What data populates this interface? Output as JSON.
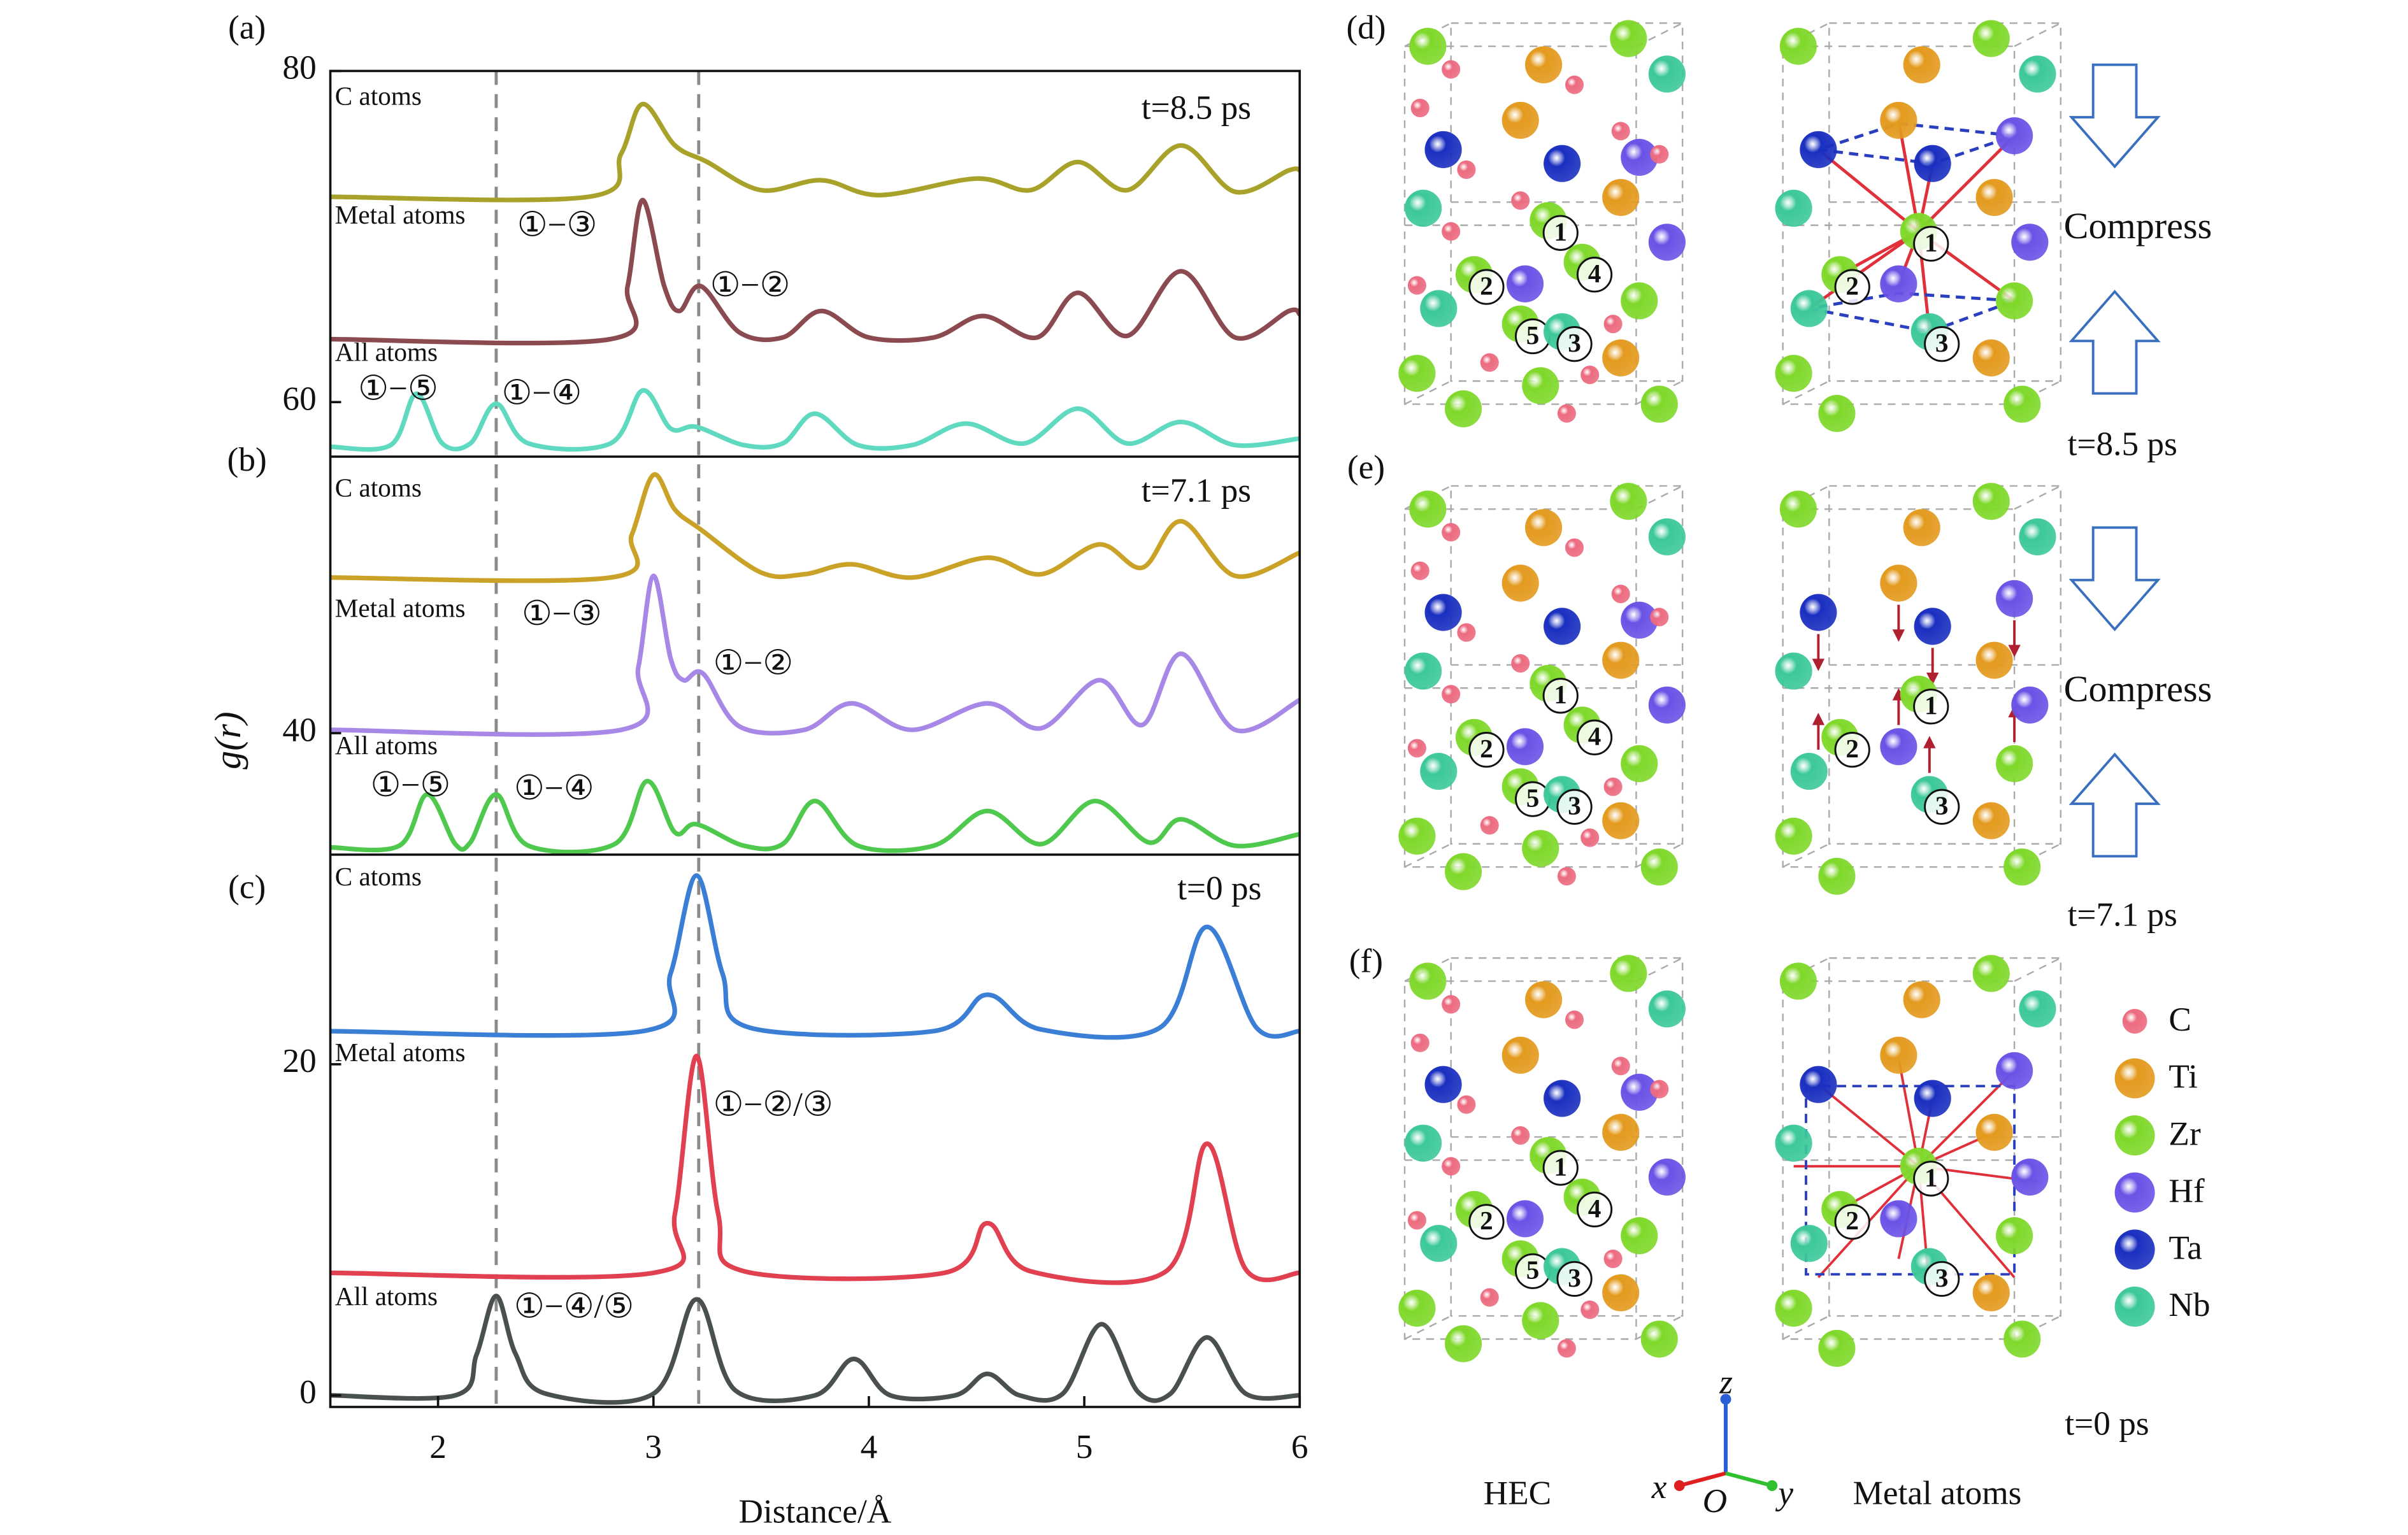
{
  "chart_data": {
    "type": "line",
    "xlabel": "Distance/Å",
    "ylabel": "g(r)",
    "xlim": [
      1.5,
      6
    ],
    "ylim": [
      -0.7,
      80
    ],
    "xticks": [
      2,
      3,
      4,
      5,
      6
    ],
    "yticks": [
      0,
      20,
      40,
      60,
      80
    ],
    "reference_lines": {
      "x": [
        2.27,
        3.21
      ],
      "color": "#8a8a8a"
    },
    "panels": [
      {
        "label": "(a)",
        "time": "t=8.5 ps",
        "annotations": [
          "①−③",
          "①−②",
          "①−⑤",
          "①−④"
        ],
        "series": [
          {
            "name": "C atoms",
            "color": "#a8a22a",
            "x": [
              1.5,
              2.7,
              2.85,
              2.95,
              3.1,
              3.25,
              3.5,
              3.78,
              4.05,
              4.5,
              4.75,
              4.97,
              5.2,
              5.45,
              5.7,
              5.95,
              6
            ],
            "values": [
              72.4,
              72.4,
              75,
              78,
              75.5,
              74.5,
              72.8,
              73.4,
              72.5,
              73.5,
              72.8,
              74.5,
              72.8,
              75.5,
              72.7,
              74,
              74
            ]
          },
          {
            "name": "Metal atoms",
            "color": "#8b4a4f",
            "x": [
              1.5,
              2.8,
              2.88,
              2.95,
              3.05,
              3.12,
              3.22,
              3.4,
              3.6,
              3.78,
              4.0,
              4.3,
              4.53,
              4.78,
              4.97,
              5.2,
              5.45,
              5.7,
              5.95,
              6
            ],
            "values": [
              63.8,
              63.8,
              67,
              72.2,
              67,
              65.5,
              67,
              64.2,
              63.9,
              65.5,
              63.9,
              63.9,
              65.2,
              63.9,
              66.6,
              64,
              67.9,
              63.9,
              65.5,
              65.3
            ]
          },
          {
            "name": "All atoms",
            "color": "#5fd9c0",
            "x": [
              1.5,
              1.78,
              1.9,
              2.02,
              2.15,
              2.27,
              2.42,
              2.8,
              2.95,
              3.08,
              3.2,
              3.42,
              3.6,
              3.75,
              3.95,
              4.2,
              4.45,
              4.72,
              4.97,
              5.2,
              5.45,
              5.7,
              6
            ],
            "values": [
              57.3,
              57.4,
              60.5,
              57.5,
              57.5,
              59.9,
              57.5,
              57.5,
              60.7,
              58.4,
              58.5,
              57.4,
              57.5,
              59.3,
              57.4,
              57.4,
              58.7,
              57.5,
              59.6,
              57.5,
              58.8,
              57.4,
              57.8
            ]
          }
        ]
      },
      {
        "label": "(b)",
        "time": "t=7.1 ps",
        "annotations": [
          "①−③",
          "①−②",
          "①−⑤",
          "①−④"
        ],
        "series": [
          {
            "name": "C atoms",
            "color": "#c9a227",
            "x": [
              1.5,
              2.8,
              2.9,
              3.0,
              3.1,
              3.22,
              3.5,
              3.7,
              3.92,
              4.2,
              4.55,
              4.8,
              5.07,
              5.27,
              5.45,
              5.7,
              6
            ],
            "values": [
              49.4,
              49.4,
              52,
              55.6,
              53.5,
              52.3,
              49.7,
              49.6,
              50.2,
              49.4,
              50.6,
              49.6,
              51.4,
              50,
              52.8,
              49.5,
              50.9
            ]
          },
          {
            "name": "Metal atoms",
            "color": "#a888e6",
            "x": [
              1.5,
              2.85,
              2.93,
              3.0,
              3.08,
              3.14,
              3.23,
              3.4,
              3.7,
              3.92,
              4.2,
              4.55,
              4.8,
              5.07,
              5.27,
              5.45,
              5.7,
              6
            ],
            "values": [
              40.2,
              40.2,
              44,
              49.5,
              44.5,
              43.2,
              43.6,
              40.4,
              40.2,
              41.8,
              40.2,
              41.8,
              40.3,
              43.2,
              40.5,
              44.8,
              40.2,
              42
            ]
          },
          {
            "name": "All atoms",
            "color": "#4ec94e",
            "x": [
              1.5,
              1.82,
              1.95,
              2.08,
              2.15,
              2.27,
              2.42,
              2.82,
              2.97,
              3.1,
              3.2,
              3.42,
              3.6,
              3.75,
              3.95,
              4.3,
              4.55,
              4.8,
              5.05,
              5.3,
              5.45,
              5.7,
              6
            ],
            "values": [
              33.1,
              33.2,
              36.3,
              33.3,
              33.4,
              36.3,
              33.2,
              33.3,
              37.1,
              34,
              34.5,
              33.2,
              33.3,
              35.9,
              33.2,
              33.2,
              35.3,
              33.3,
              35.9,
              33.4,
              34.8,
              33.2,
              33.9
            ]
          }
        ]
      },
      {
        "label": "(c)",
        "time": "t=0 ps",
        "annotations": [
          "①−②/③",
          "①−④/⑤"
        ],
        "series": [
          {
            "name": "C atoms",
            "color": "#3a7fd5",
            "x": [
              1.5,
              2.95,
              3.08,
              3.2,
              3.32,
              3.45,
              4.3,
              4.55,
              4.8,
              5.35,
              5.57,
              5.8,
              6
            ],
            "values": [
              22,
              22,
              25.5,
              31.4,
              25.5,
              22.2,
              22,
              24.2,
              22.1,
              22.2,
              28.3,
              22.2,
              22
            ]
          },
          {
            "name": "Metal atoms",
            "color": "#e0404f",
            "x": [
              1.5,
              3.0,
              3.1,
              3.2,
              3.3,
              3.42,
              4.35,
              4.55,
              4.75,
              5.38,
              5.57,
              5.75,
              6
            ],
            "values": [
              7.4,
              7.4,
              11,
              20.5,
              11,
              7.5,
              7.4,
              10.4,
              7.5,
              7.5,
              15.2,
              7.6,
              7.4
            ]
          },
          {
            "name": "All atoms",
            "color": "#4a5050",
            "x": [
              1.5,
              2.08,
              2.18,
              2.27,
              2.36,
              2.5,
              3.0,
              3.2,
              3.38,
              3.75,
              3.93,
              4.1,
              4.4,
              4.55,
              4.7,
              4.9,
              5.08,
              5.25,
              5.4,
              5.57,
              5.75,
              6
            ],
            "values": [
              0,
              0,
              2.5,
              6,
              2.5,
              0.1,
              0.1,
              5.8,
              0.3,
              0,
              2.2,
              0,
              0,
              1.3,
              0,
              0.1,
              4.3,
              0.2,
              0.1,
              3.5,
              0.1,
              0
            ]
          }
        ]
      }
    ]
  },
  "diagram": {
    "panel_labels": [
      "(d)",
      "(e)",
      "(f)"
    ],
    "compress": "Compress",
    "times": [
      "t=8.5 ps",
      "t=7.1 ps",
      "t=0 ps"
    ],
    "site_labels": [
      "1",
      "2",
      "3",
      "4",
      "5"
    ],
    "captions": [
      "HEC",
      "Metal atoms"
    ],
    "axes": [
      "x",
      "O",
      "y",
      "z"
    ],
    "legend": [
      {
        "name": "C",
        "color": "#ec6b80"
      },
      {
        "name": "Ti",
        "color": "#e39a1e"
      },
      {
        "name": "Zr",
        "color": "#7fd82a"
      },
      {
        "name": "Hf",
        "color": "#6a52e6"
      },
      {
        "name": "Ta",
        "color": "#1a2fc0"
      },
      {
        "name": "Nb",
        "color": "#3cc89a"
      }
    ]
  }
}
